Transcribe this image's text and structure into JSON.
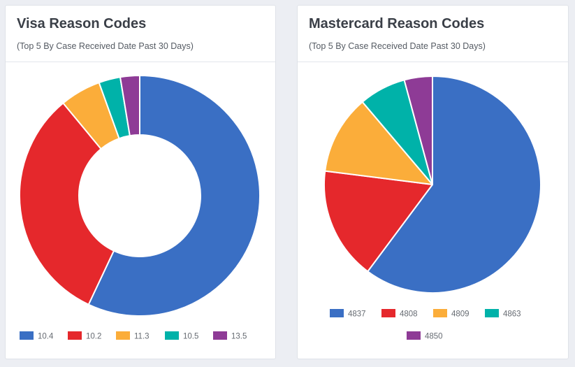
{
  "visa": {
    "title": "Visa Reason Codes",
    "subtitle": "(Top 5 By Case Received Date Past 30 Days)"
  },
  "mastercard": {
    "title": "Mastercard Reason Codes",
    "subtitle": "(Top 5 By Case Received Date Past 30 Days)"
  },
  "chart_data": [
    {
      "type": "pie",
      "subtype": "donut",
      "title": "Visa Reason Codes",
      "subtitle": "(Top 5 By Case Received Date Past 30 Days)",
      "categories": [
        "10.4",
        "10.2",
        "11.3",
        "10.5",
        "13.5"
      ],
      "values": [
        57.0,
        32.0,
        5.5,
        2.9,
        2.6
      ],
      "colors": [
        "#3a6fc4",
        "#e5282c",
        "#fbad3a",
        "#00b2a9",
        "#8e3b96"
      ],
      "legend": "bottom"
    },
    {
      "type": "pie",
      "title": "Mastercard Reason Codes",
      "subtitle": "(Top 5 By Case Received Date Past 30 Days)",
      "categories": [
        "4837",
        "4808",
        "4809",
        "4863",
        "4850"
      ],
      "values": [
        60.2,
        16.8,
        11.8,
        7.0,
        4.2
      ],
      "colors": [
        "#3a6fc4",
        "#e5282c",
        "#fbad3a",
        "#00b2a9",
        "#8e3b96"
      ],
      "legend": "bottom"
    }
  ]
}
